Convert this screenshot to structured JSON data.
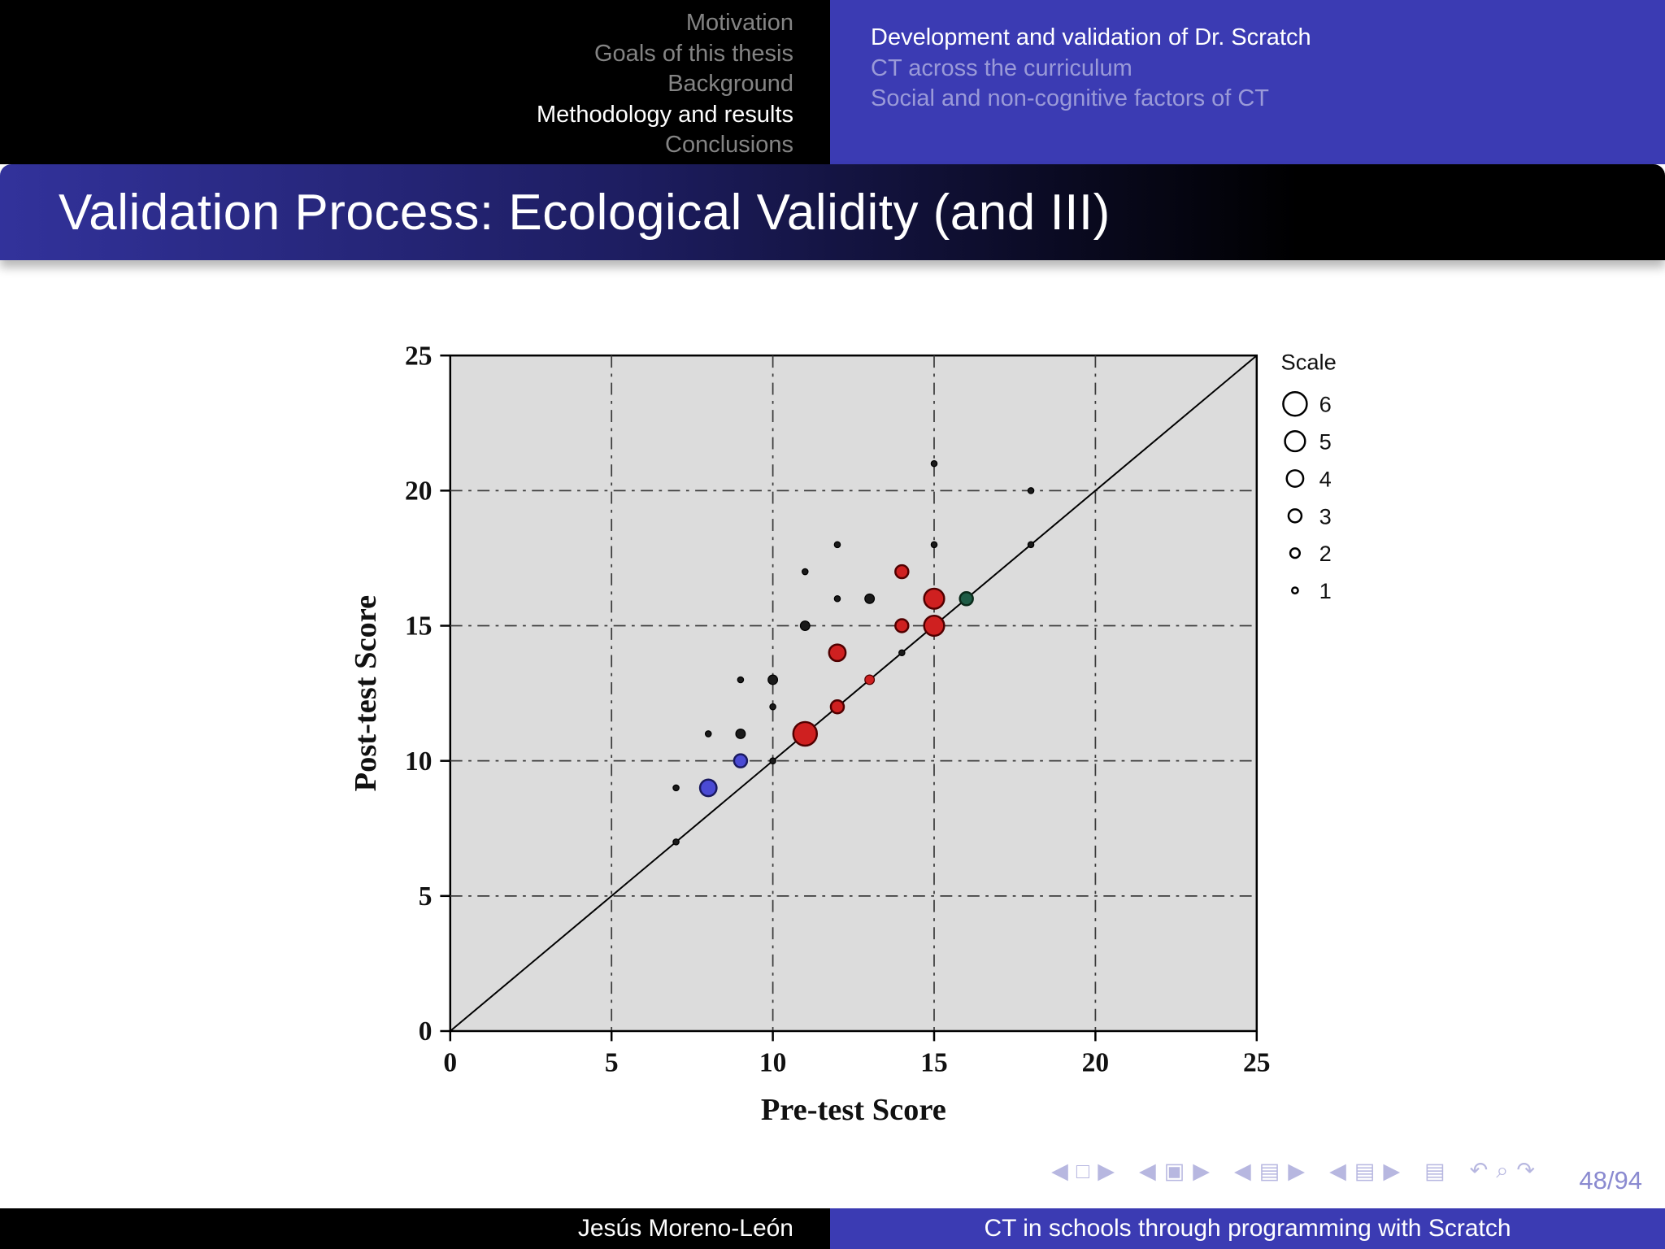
{
  "title": "Validation Process: Ecological Validity (and III)",
  "header": {
    "sections": [
      {
        "label": "Motivation",
        "active": false
      },
      {
        "label": "Goals of this thesis",
        "active": false
      },
      {
        "label": "Background",
        "active": false
      },
      {
        "label": "Methodology and results",
        "active": true
      },
      {
        "label": "Conclusions",
        "active": false
      }
    ],
    "subsections": [
      {
        "label": "Development and validation of Dr. Scratch",
        "active": true
      },
      {
        "label": "CT across the curriculum",
        "active": false
      },
      {
        "label": "Social and non-cognitive factors of CT",
        "active": false
      }
    ]
  },
  "footer": {
    "author": "Jesús Moreno-León",
    "short_title": "CT in schools through programming with Scratch",
    "page": "48/94"
  },
  "nav_symbols": [
    {
      "group": "slide",
      "items": [
        {
          "name": "prev-slide",
          "glyph": "◀"
        },
        {
          "name": "slide",
          "glyph": "□"
        },
        {
          "name": "next-slide",
          "glyph": "▶"
        }
      ]
    },
    {
      "group": "frame",
      "items": [
        {
          "name": "prev-frame",
          "glyph": "◀"
        },
        {
          "name": "frame",
          "glyph": "▣"
        },
        {
          "name": "next-frame",
          "glyph": "▶"
        }
      ]
    },
    {
      "group": "subsection",
      "items": [
        {
          "name": "prev-subsection",
          "glyph": "◀"
        },
        {
          "name": "subsection",
          "glyph": "▤"
        },
        {
          "name": "next-subsection",
          "glyph": "▶"
        }
      ]
    },
    {
      "group": "section",
      "items": [
        {
          "name": "prev-section",
          "glyph": "◀"
        },
        {
          "name": "section",
          "glyph": "▤"
        },
        {
          "name": "next-section",
          "glyph": "▶"
        }
      ]
    },
    {
      "group": "presentation",
      "items": [
        {
          "name": "presentation",
          "glyph": "▤"
        }
      ]
    },
    {
      "group": "history",
      "items": [
        {
          "name": "go-back",
          "glyph": "↶"
        },
        {
          "name": "search",
          "glyph": "⌕"
        },
        {
          "name": "go-forward",
          "glyph": "↷"
        }
      ]
    }
  ],
  "colors": {
    "header_blue": "#3b3bb3",
    "plot_bg": "#dcdcdc",
    "point_colors": {
      "red": {
        "fill": "#cf2020",
        "stroke": "#500000"
      },
      "blue": {
        "fill": "#4a4ad4",
        "stroke": "#1a1a60"
      },
      "dark": {
        "fill": "#1a1a1a",
        "stroke": "#000000"
      },
      "green": {
        "fill": "#1e5c46",
        "stroke": "#0a2a1a"
      }
    }
  },
  "chart_data": {
    "type": "scatter",
    "xlabel": "Pre-test Score",
    "ylabel": "Post-test Score",
    "xlim": [
      0,
      25
    ],
    "ylim": [
      0,
      25
    ],
    "xticks": [
      0,
      5,
      10,
      15,
      20,
      25
    ],
    "yticks": [
      0,
      5,
      10,
      15,
      20,
      25
    ],
    "gridlines": [
      5,
      10,
      15,
      20
    ],
    "diagonal": true,
    "grid": true,
    "legend": {
      "title": "Scale",
      "sizes": [
        6,
        5,
        4,
        3,
        2,
        1
      ],
      "position": "top-right"
    },
    "points": [
      {
        "x": 11,
        "y": 11,
        "size": 6,
        "color": "red"
      },
      {
        "x": 15,
        "y": 16,
        "size": 5,
        "color": "red"
      },
      {
        "x": 15,
        "y": 15,
        "size": 5,
        "color": "red"
      },
      {
        "x": 12,
        "y": 14,
        "size": 4,
        "color": "red"
      },
      {
        "x": 14,
        "y": 17,
        "size": 3,
        "color": "red"
      },
      {
        "x": 14,
        "y": 15,
        "size": 3,
        "color": "red"
      },
      {
        "x": 12,
        "y": 12,
        "size": 3,
        "color": "red"
      },
      {
        "x": 13,
        "y": 13,
        "size": 2,
        "color": "red"
      },
      {
        "x": 8,
        "y": 9,
        "size": 4,
        "color": "blue"
      },
      {
        "x": 9,
        "y": 10,
        "size": 3,
        "color": "blue"
      },
      {
        "x": 16,
        "y": 16,
        "size": 3,
        "color": "green"
      },
      {
        "x": 9,
        "y": 11,
        "size": 2,
        "color": "dark"
      },
      {
        "x": 10,
        "y": 13,
        "size": 2,
        "color": "dark"
      },
      {
        "x": 11,
        "y": 15,
        "size": 2,
        "color": "dark"
      },
      {
        "x": 13,
        "y": 16,
        "size": 2,
        "color": "dark"
      },
      {
        "x": 7,
        "y": 7,
        "size": 1,
        "color": "dark"
      },
      {
        "x": 7,
        "y": 9,
        "size": 1,
        "color": "dark"
      },
      {
        "x": 8,
        "y": 11,
        "size": 1,
        "color": "dark"
      },
      {
        "x": 9,
        "y": 13,
        "size": 1,
        "color": "dark"
      },
      {
        "x": 10,
        "y": 12,
        "size": 1,
        "color": "dark"
      },
      {
        "x": 10,
        "y": 10,
        "size": 1,
        "color": "dark"
      },
      {
        "x": 11,
        "y": 17,
        "size": 1,
        "color": "dark"
      },
      {
        "x": 12,
        "y": 16,
        "size": 1,
        "color": "dark"
      },
      {
        "x": 12,
        "y": 18,
        "size": 1,
        "color": "dark"
      },
      {
        "x": 14,
        "y": 14,
        "size": 1,
        "color": "dark"
      },
      {
        "x": 15,
        "y": 18,
        "size": 1,
        "color": "dark"
      },
      {
        "x": 15,
        "y": 21,
        "size": 1,
        "color": "dark"
      },
      {
        "x": 18,
        "y": 18,
        "size": 1,
        "color": "dark"
      },
      {
        "x": 18,
        "y": 20,
        "size": 1,
        "color": "dark"
      }
    ]
  }
}
